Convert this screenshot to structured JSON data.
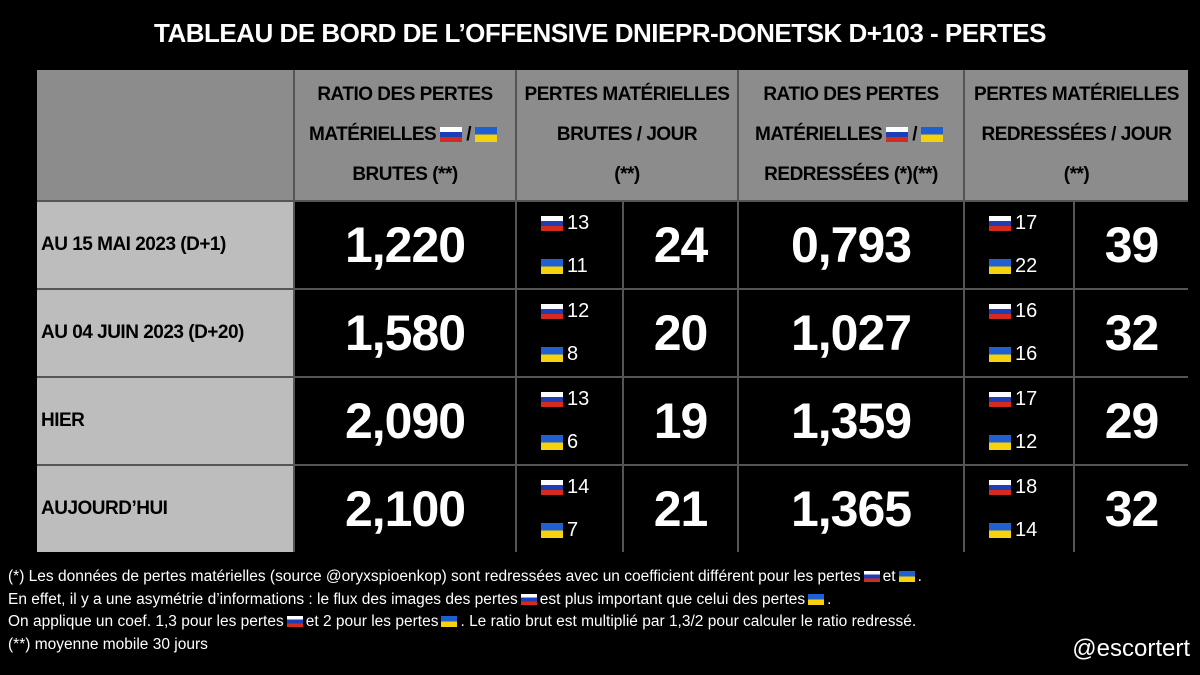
{
  "title": "TABLEAU DE BORD DE L’OFFENSIVE DNIEPR-DONETSK D+103 - PERTES",
  "header": {
    "col1": {
      "line1": "RATIO DES PERTES",
      "line2a": "MATÉRIELLES",
      "line2b": "/",
      "line3": "BRUTES (**)"
    },
    "col2": {
      "line1": "PERTES MATÉRIELLES",
      "line2": "BRUTES / JOUR",
      "line3": "(**)"
    },
    "col3": {
      "line1": "RATIO DES PERTES",
      "line2a": "MATÉRIELLES",
      "line2b": "/",
      "line3": "REDRESSÉES (*)(**)"
    },
    "col4": {
      "line1": "PERTES MATÉRIELLES",
      "line2": "REDRESSÉES / JOUR",
      "line3": "(**)"
    }
  },
  "rows": [
    {
      "label": "AU 15 MAI 2023 (D+1)",
      "ratio_brut": "1,220",
      "ru_brut": 13,
      "ua_brut": 11,
      "jour_brut": 24,
      "ratio_redresse": "0,793",
      "ru_redresse": 17,
      "ua_redresse": 22,
      "jour_redresse": 39
    },
    {
      "label": "AU 04 JUIN 2023 (D+20)",
      "ratio_brut": "1,580",
      "ru_brut": 12,
      "ua_brut": 8,
      "jour_brut": 20,
      "ratio_redresse": "1,027",
      "ru_redresse": 16,
      "ua_redresse": 16,
      "jour_redresse": 32
    },
    {
      "label": "HIER",
      "ratio_brut": "2,090",
      "ru_brut": 13,
      "ua_brut": 6,
      "jour_brut": 19,
      "ratio_redresse": "1,359",
      "ru_redresse": 17,
      "ua_redresse": 12,
      "jour_redresse": 29
    },
    {
      "label": "AUJOURD’HUI",
      "ratio_brut": "2,100",
      "ru_brut": 14,
      "ua_brut": 7,
      "jour_brut": 21,
      "ratio_redresse": "1,365",
      "ru_redresse": 18,
      "ua_redresse": 14,
      "jour_redresse": 32
    }
  ],
  "notes": {
    "note1a": "(*) Les données de pertes matérielles (source @oryxspioenkop) sont redressées avec un coefficient différent pour les pertes",
    "note1b": "et",
    "note1c": ".",
    "note2a": "En effet, il y a une asymétrie d’informations : le flux des images des pertes",
    "note2b": "est plus important que celui des pertes",
    "note2c": ".",
    "note3a": "On applique un coef. 1,3 pour les pertes",
    "note3b": "et 2 pour les pertes",
    "note3c": ". Le ratio brut est multiplié par 1,3/2 pour calculer le ratio redressé.",
    "note4": "(**) moyenne mobile 30 jours"
  },
  "signature": "@escortert"
}
